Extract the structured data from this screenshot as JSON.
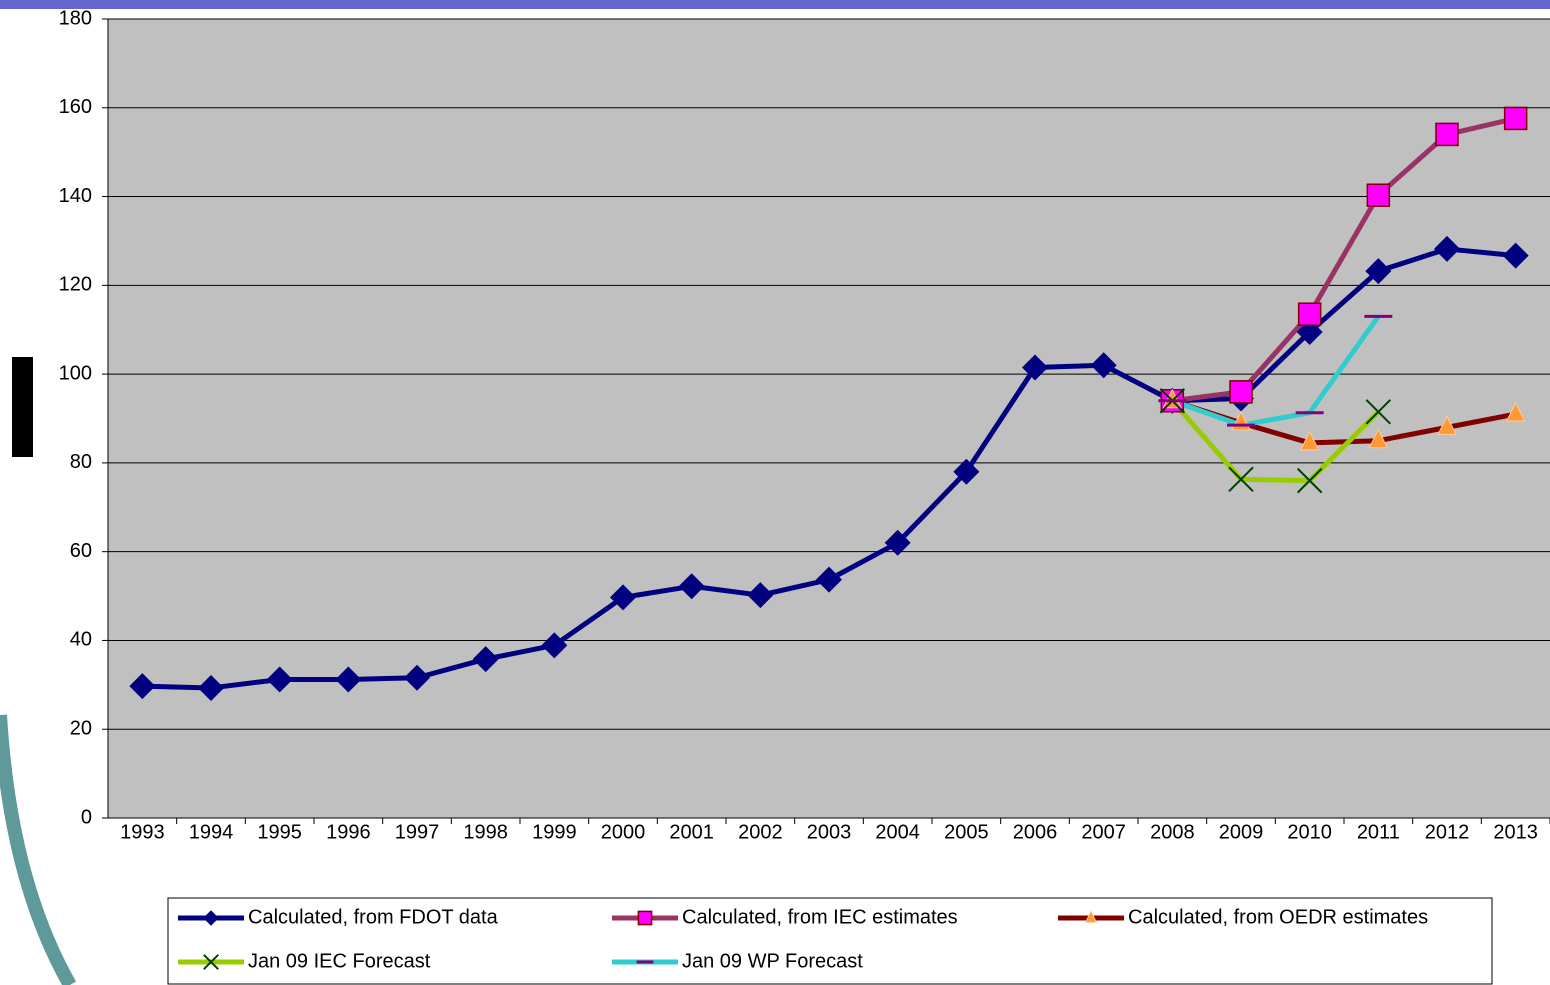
{
  "chart_data": {
    "type": "line",
    "categories": [
      "1993",
      "1994",
      "1995",
      "1996",
      "1997",
      "1998",
      "1999",
      "2000",
      "2001",
      "2002",
      "2003",
      "2004",
      "2005",
      "2006",
      "2007",
      "2008",
      "2009",
      "2010",
      "2011",
      "2012",
      "2013"
    ],
    "series": [
      {
        "name": "Calculated, from FDOT data",
        "color": "#000080",
        "marker": "diamond",
        "marker_color": "#000080",
        "values": [
          29.7,
          29.3,
          31.2,
          31.2,
          31.6,
          35.8,
          38.9,
          49.7,
          52.2,
          50.2,
          53.7,
          62,
          78,
          101.5,
          102,
          94,
          94.5,
          109.5,
          123.2,
          128.2,
          126.7
        ]
      },
      {
        "name": "Calculated, from IEC estimates",
        "color": "#993366",
        "marker": "square",
        "marker_color": "#ff00ff",
        "values": [
          null,
          null,
          null,
          null,
          null,
          null,
          null,
          null,
          null,
          null,
          null,
          null,
          null,
          null,
          null,
          94,
          96,
          113.5,
          140.3,
          154,
          157.6
        ]
      },
      {
        "name": "Calculated, from OEDR estimates",
        "color": "#800000",
        "marker": "triangle",
        "marker_color": "#ff9933",
        "values": [
          null,
          null,
          null,
          null,
          null,
          null,
          null,
          null,
          null,
          null,
          null,
          null,
          null,
          null,
          null,
          94,
          89,
          84.5,
          85,
          88,
          91
        ]
      },
      {
        "name": "Jan 09 IEC Forecast",
        "color": "#99cc00",
        "marker": "x",
        "marker_color": "#004000",
        "values": [
          null,
          null,
          null,
          null,
          null,
          null,
          null,
          null,
          null,
          null,
          null,
          null,
          null,
          null,
          null,
          94,
          76.3,
          76,
          91.5,
          null,
          null
        ]
      },
      {
        "name": "Jan 09 WP Forecast",
        "color": "#33cccc",
        "marker": "dash",
        "marker_color": "#800080",
        "values": [
          null,
          null,
          null,
          null,
          null,
          null,
          null,
          null,
          null,
          null,
          null,
          null,
          null,
          null,
          null,
          94,
          88.5,
          91.3,
          113,
          null,
          null
        ]
      }
    ],
    "ylim": [
      0,
      180
    ],
    "yticks": [
      0,
      20,
      40,
      60,
      80,
      100,
      120,
      140,
      160,
      180
    ],
    "grid": true,
    "legend": "bottom"
  }
}
